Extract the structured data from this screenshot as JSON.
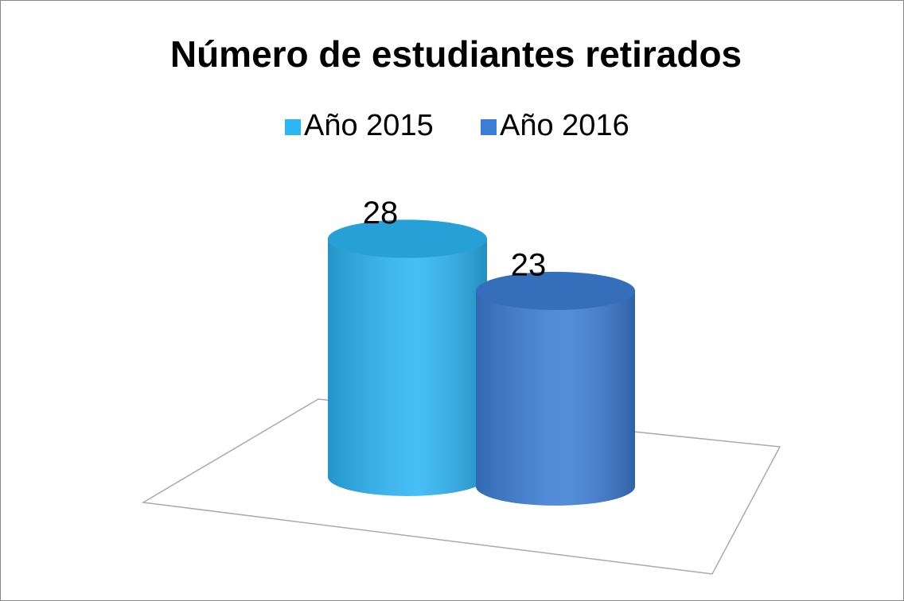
{
  "chart_data": {
    "type": "bar",
    "title": "Número de estudiantes retirados",
    "categories": [
      null
    ],
    "series": [
      {
        "name": "Año 2015",
        "color": "#2db6f5",
        "values": [
          28
        ]
      },
      {
        "name": "Año 2016",
        "color": "#3d7fd6",
        "values": [
          23
        ]
      }
    ],
    "legend": "top"
  }
}
